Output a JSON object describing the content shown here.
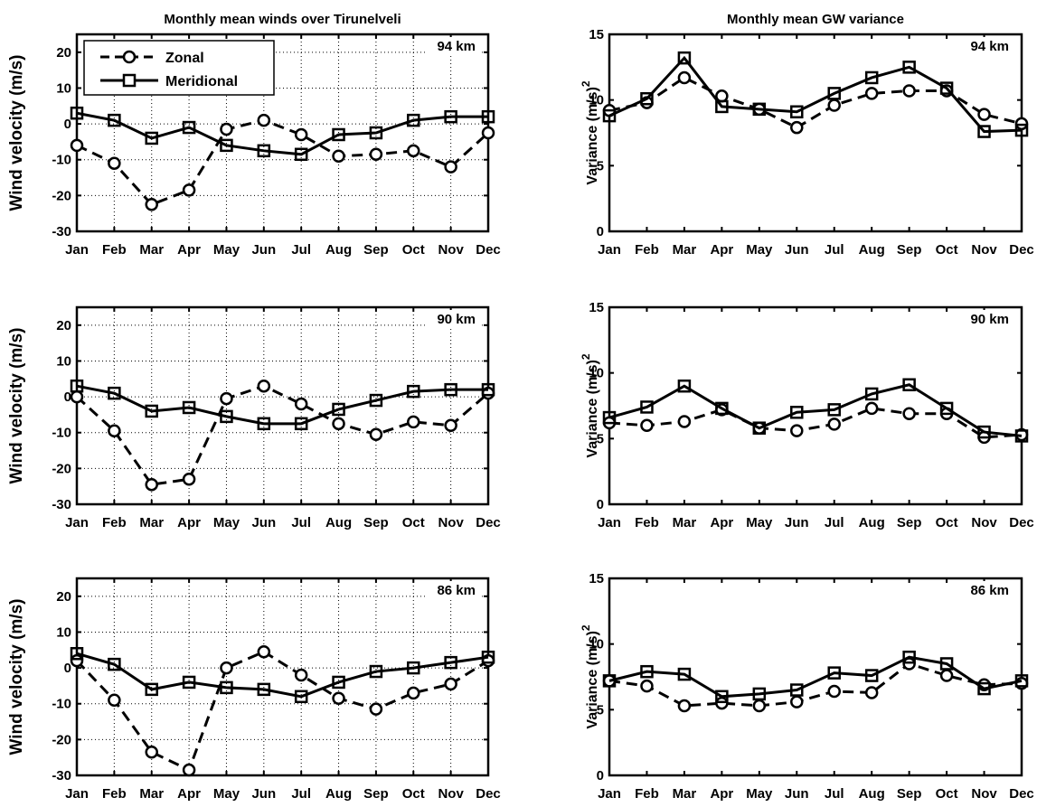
{
  "chart_data": [
    {
      "type": "line",
      "title": "Monthly mean winds over Tirunelveli",
      "annotation": "94 km",
      "ylabel": "Wind velocity (m/s)",
      "ylim": [
        -30,
        25
      ],
      "yticks": [
        -30,
        -20,
        -10,
        0,
        10,
        20
      ],
      "grid": true,
      "legend": {
        "placement": "top-left",
        "entries": [
          "Zonal",
          "Meridional"
        ]
      },
      "categories": [
        "Jan",
        "Feb",
        "Mar",
        "Apr",
        "May",
        "Jun",
        "Jul",
        "Aug",
        "Sep",
        "Oct",
        "Nov",
        "Dec"
      ],
      "series": [
        {
          "name": "Zonal",
          "style": "dashed-circle",
          "values": [
            -6,
            -11,
            -22.5,
            -18.5,
            -1.5,
            1,
            -3,
            -9,
            -8.5,
            -7.5,
            -12,
            -2.5
          ]
        },
        {
          "name": "Meridional",
          "style": "solid-square",
          "values": [
            3,
            1,
            -4,
            -1,
            -6,
            -7.5,
            -8.5,
            -3,
            -2.5,
            1,
            2,
            2
          ]
        }
      ]
    },
    {
      "type": "line",
      "title": "Monthly mean GW variance",
      "annotation": "94 km",
      "ylabel": "Variance (m/s)",
      "ylabel_sup": "2",
      "ylim": [
        0,
        15
      ],
      "yticks": [
        0,
        5,
        10,
        15
      ],
      "grid": false,
      "categories": [
        "Jan",
        "Feb",
        "Mar",
        "Apr",
        "May",
        "Jun",
        "Jul",
        "Aug",
        "Sep",
        "Oct",
        "Nov",
        "Dec"
      ],
      "series": [
        {
          "name": "Zonal",
          "style": "dashed-circle",
          "values": [
            9.2,
            9.8,
            11.7,
            10.3,
            9.3,
            7.9,
            9.6,
            10.5,
            10.7,
            10.7,
            8.9,
            8.2
          ]
        },
        {
          "name": "Meridional",
          "style": "solid-square",
          "values": [
            8.8,
            10.1,
            13.2,
            9.5,
            9.3,
            9.1,
            10.5,
            11.7,
            12.5,
            10.9,
            7.6,
            7.7
          ]
        }
      ]
    },
    {
      "type": "line",
      "title": "",
      "annotation": "90 km",
      "ylabel": "Wind velocity (m/s)",
      "ylim": [
        -30,
        25
      ],
      "yticks": [
        -30,
        -20,
        -10,
        0,
        10,
        20
      ],
      "grid": true,
      "categories": [
        "Jan",
        "Feb",
        "Mar",
        "Apr",
        "May",
        "Jun",
        "Jul",
        "Aug",
        "Sep",
        "Oct",
        "Nov",
        "Dec"
      ],
      "series": [
        {
          "name": "Zonal",
          "style": "dashed-circle",
          "values": [
            0,
            -9.5,
            -24.5,
            -23,
            -0.5,
            3,
            -2,
            -7.5,
            -10.5,
            -7,
            -8,
            1
          ]
        },
        {
          "name": "Meridional",
          "style": "solid-square",
          "values": [
            3,
            1,
            -4,
            -3,
            -5.5,
            -7.5,
            -7.5,
            -3.5,
            -1,
            1.5,
            2,
            2
          ]
        }
      ]
    },
    {
      "type": "line",
      "title": "",
      "annotation": "90 km",
      "ylabel": "Variance (m/s)",
      "ylabel_sup": "2",
      "ylim": [
        0,
        15
      ],
      "yticks": [
        0,
        5,
        10,
        15
      ],
      "grid": false,
      "categories": [
        "Jan",
        "Feb",
        "Mar",
        "Apr",
        "May",
        "Jun",
        "Jul",
        "Aug",
        "Sep",
        "Oct",
        "Nov",
        "Dec"
      ],
      "series": [
        {
          "name": "Zonal",
          "style": "dashed-circle",
          "values": [
            6.2,
            6.0,
            6.3,
            7.2,
            5.8,
            5.6,
            6.1,
            7.3,
            6.9,
            6.9,
            5.1,
            5.3
          ]
        },
        {
          "name": "Meridional",
          "style": "solid-square",
          "values": [
            6.6,
            7.4,
            9.0,
            7.3,
            5.8,
            7.0,
            7.2,
            8.4,
            9.1,
            7.3,
            5.5,
            5.2
          ]
        }
      ]
    },
    {
      "type": "line",
      "title": "",
      "annotation": "86 km",
      "ylabel": "Wind velocity (m/s)",
      "ylim": [
        -30,
        25
      ],
      "yticks": [
        -30,
        -20,
        -10,
        0,
        10,
        20
      ],
      "grid": true,
      "categories": [
        "Jan",
        "Feb",
        "Mar",
        "Apr",
        "May",
        "Jun",
        "Jul",
        "Aug",
        "Sep",
        "Oct",
        "Nov",
        "Dec"
      ],
      "series": [
        {
          "name": "Zonal",
          "style": "dashed-circle",
          "values": [
            2,
            -9,
            -23.5,
            -28.5,
            0,
            4.5,
            -2,
            -8.5,
            -11.5,
            -7,
            -4.5,
            2
          ]
        },
        {
          "name": "Meridional",
          "style": "solid-square",
          "values": [
            4,
            1,
            -6,
            -4,
            -5.5,
            -6,
            -8,
            -4,
            -1,
            0,
            1.5,
            3
          ]
        }
      ]
    },
    {
      "type": "line",
      "title": "",
      "annotation": "86 km",
      "ylabel": "Variance (m/s)",
      "ylabel_sup": "2",
      "ylim": [
        0,
        15
      ],
      "yticks": [
        0,
        5,
        10,
        15
      ],
      "grid": false,
      "categories": [
        "Jan",
        "Feb",
        "Mar",
        "Apr",
        "May",
        "Jun",
        "Jul",
        "Aug",
        "Sep",
        "Oct",
        "Nov",
        "Dec"
      ],
      "series": [
        {
          "name": "Zonal",
          "style": "dashed-circle",
          "values": [
            7.2,
            6.8,
            5.3,
            5.5,
            5.3,
            5.6,
            6.4,
            6.3,
            8.5,
            7.6,
            6.9,
            7.0
          ]
        },
        {
          "name": "Meridional",
          "style": "solid-square",
          "values": [
            7.2,
            7.9,
            7.7,
            6.0,
            6.2,
            6.5,
            7.8,
            7.6,
            9.0,
            8.5,
            6.6,
            7.2
          ]
        }
      ]
    }
  ]
}
